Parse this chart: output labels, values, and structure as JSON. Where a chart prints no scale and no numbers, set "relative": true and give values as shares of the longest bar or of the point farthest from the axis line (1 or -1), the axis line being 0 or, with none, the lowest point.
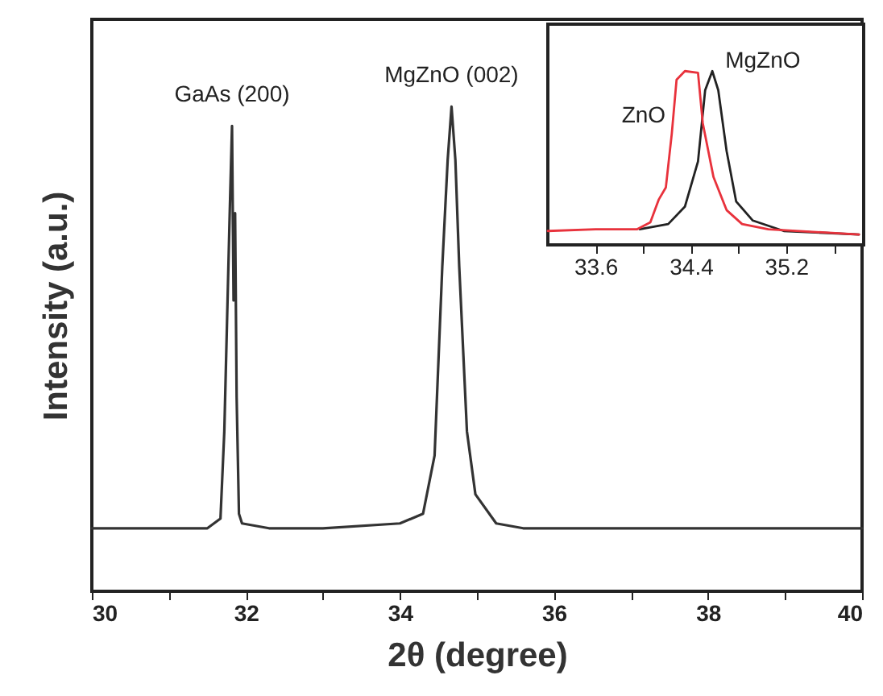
{
  "chart_data": [
    {
      "type": "line",
      "relative": true,
      "xlabel": "2θ (degree)",
      "ylabel": "Intensity (a.u.)",
      "color": "#333333",
      "xlim": [
        30,
        40
      ],
      "xticks": [
        30,
        {
          "value": 31,
          "label": null
        },
        32,
        {
          "value": 33,
          "label": null
        },
        34,
        {
          "value": 35,
          "label": null
        },
        36,
        {
          "value": 37,
          "label": null
        },
        38,
        {
          "value": 39,
          "label": null
        },
        40
      ],
      "x": [
        30,
        31,
        31.5,
        31.67,
        31.72,
        31.79,
        31.82,
        31.84,
        31.86,
        31.88,
        31.91,
        31.95,
        32.3,
        33,
        34,
        34.3,
        34.45,
        34.55,
        34.62,
        34.67,
        34.72,
        34.77,
        34.87,
        34.98,
        35.25,
        35.6,
        36.5,
        38,
        40
      ],
      "values": [
        0.13,
        0.13,
        0.13,
        0.15,
        0.33,
        0.78,
        0.96,
        0.6,
        0.78,
        0.4,
        0.16,
        0.14,
        0.13,
        0.13,
        0.14,
        0.16,
        0.28,
        0.67,
        0.89,
        1,
        0.89,
        0.67,
        0.33,
        0.2,
        0.14,
        0.13,
        0.13,
        0.13,
        0.13
      ],
      "annotations": [
        {
          "text": "GaAs (200)",
          "x": 31.82,
          "y": 0.96
        },
        {
          "text": "MgZnO (002)",
          "x": 34.67,
          "y": 1
        }
      ]
    },
    {
      "type": "line",
      "relative": true,
      "xlim": [
        33.2,
        35.85
      ],
      "xticks": [
        33.6,
        {
          "value": 34,
          "label": null
        },
        34.4,
        {
          "value": 34.8,
          "label": null
        },
        35.2,
        {
          "value": 35.6,
          "label": null
        }
      ],
      "series": [
        {
          "name": "MgZnO",
          "color": "#222222",
          "x": [
            33.97,
            34.21,
            34.35,
            34.46,
            34.52,
            34.58,
            34.63,
            34.7,
            34.78,
            34.92,
            35.18,
            35.81
          ],
          "values": [
            0.09,
            0.12,
            0.22,
            0.48,
            0.89,
            1,
            0.89,
            0.54,
            0.25,
            0.14,
            0.08,
            0.06
          ]
        },
        {
          "name": "ZnO",
          "color": "#e8323c",
          "x": [
            33.2,
            33.6,
            33.95,
            34.06,
            34.13,
            34.19,
            34.24,
            34.28,
            34.35,
            34.46,
            34.5,
            34.59,
            34.7,
            34.83,
            35.05,
            35.81
          ],
          "values": [
            0.08,
            0.09,
            0.09,
            0.13,
            0.26,
            0.33,
            0.64,
            0.95,
            1,
            0.99,
            0.7,
            0.39,
            0.2,
            0.12,
            0.09,
            0.06
          ]
        }
      ]
    }
  ]
}
